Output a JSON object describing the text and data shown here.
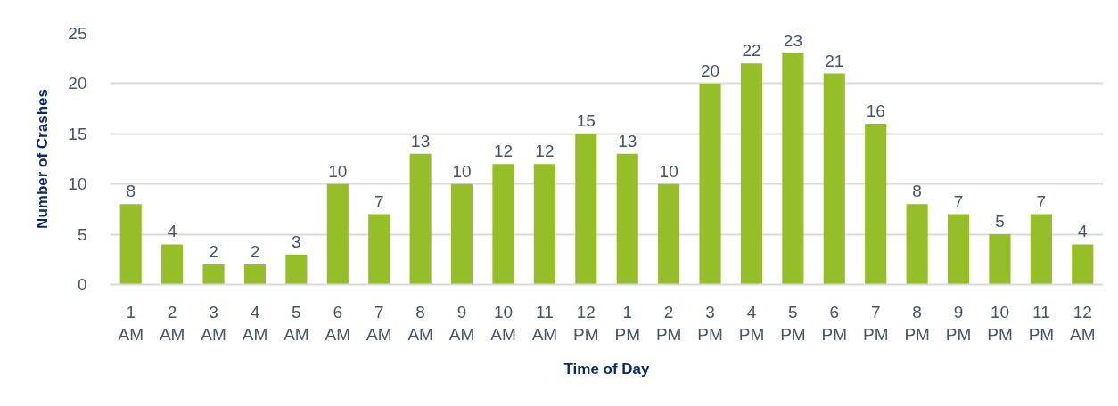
{
  "chart_data": {
    "type": "bar",
    "xlabel": "Time of Day",
    "ylabel": "Number of Crashes",
    "categories": [
      "1 AM",
      "2 AM",
      "3 AM",
      "4 AM",
      "5 AM",
      "6 AM",
      "7 AM",
      "8 AM",
      "9 AM",
      "10 AM",
      "11 AM",
      "12 PM",
      "1 PM",
      "2 PM",
      "3 PM",
      "4 PM",
      "5 PM",
      "6 PM",
      "7 PM",
      "8 PM",
      "9 PM",
      "10 PM",
      "11 PM",
      "12 AM"
    ],
    "values": [
      8,
      4,
      2,
      2,
      3,
      10,
      7,
      13,
      10,
      12,
      12,
      15,
      13,
      10,
      20,
      22,
      23,
      21,
      16,
      8,
      7,
      5,
      7,
      4
    ],
    "color": "#96be28",
    "ylim": [
      0,
      25
    ],
    "yticks": [
      0,
      5,
      10,
      15,
      20,
      25
    ],
    "grid": "y",
    "data_labels": true
  }
}
